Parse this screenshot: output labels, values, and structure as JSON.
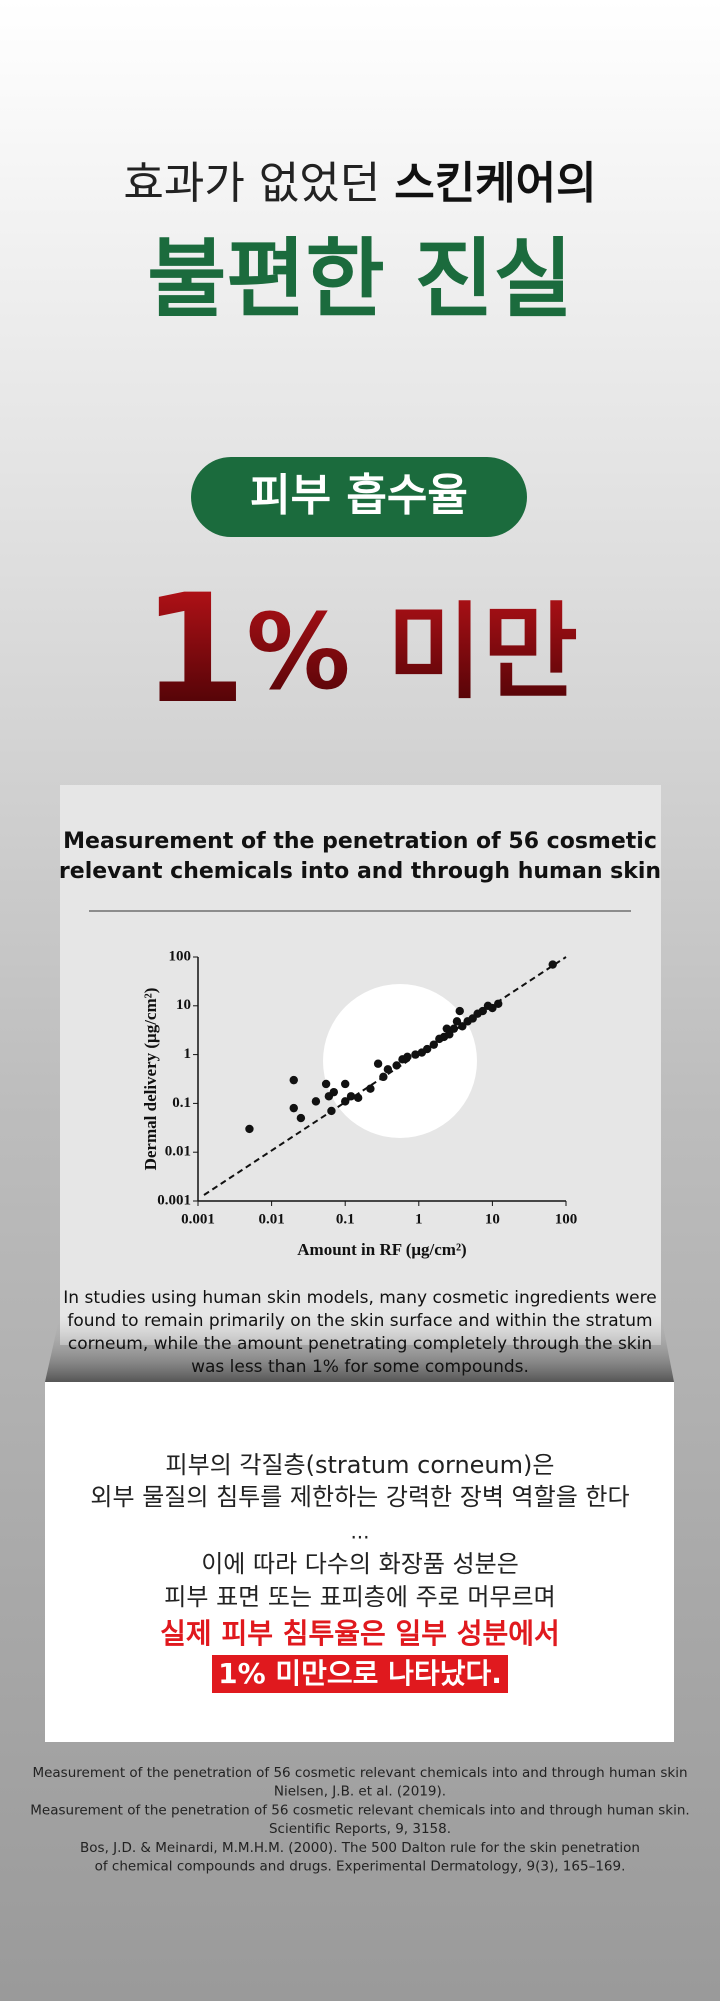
{
  "header": {
    "line1_normal": "효과가 없었던 ",
    "line1_bold": "스킨케어의",
    "line2": "불편한 진실"
  },
  "badge": "피부 흡수율",
  "big_stat": {
    "number": "1",
    "rest": "% 미만"
  },
  "card": {
    "title": [
      "Measurement of the penetration of 56 cosmetic",
      "relevant chemicals into and through human skin"
    ],
    "caption": [
      "In studies using human skin models, many cosmetic ingredients were",
      "found to remain primarily on the skin surface and within the stratum",
      "corneum, while the amount penetrating completely through the skin",
      "was less than 1% for some compounds."
    ]
  },
  "chart_data": {
    "type": "scatter",
    "x_label": "Amount in RF (μg/cm²)",
    "y_label": "Dermal delivery (μg/cm²)",
    "log_x": true,
    "log_y": true,
    "color": "#111111",
    "x": [
      0.005,
      0.02,
      0.02,
      0.025,
      0.04,
      0.055,
      0.06,
      0.07,
      0.065,
      0.1,
      0.1,
      0.12,
      0.15,
      0.22,
      0.28,
      0.33,
      0.38,
      0.5,
      0.6,
      0.7,
      0.9,
      1.1,
      1.3,
      1.6,
      1.9,
      2.2,
      2.4,
      2.6,
      3,
      3.3,
      3.6,
      3.9,
      4.6,
      5.4,
      6.3,
      7.4,
      8.7,
      10,
      12,
      66
    ],
    "y": [
      0.03,
      0.3,
      0.08,
      0.05,
      0.11,
      0.25,
      0.14,
      0.17,
      0.07,
      0.25,
      0.11,
      0.14,
      0.13,
      0.2,
      0.65,
      0.35,
      0.5,
      0.6,
      0.8,
      0.9,
      1,
      1.1,
      1.3,
      1.6,
      2.1,
      2.3,
      3.4,
      2.6,
      3.4,
      4.8,
      7.8,
      3.8,
      4.8,
      5.5,
      6.9,
      7.8,
      10,
      9,
      11,
      70
    ],
    "xlim": [
      0.001,
      100
    ],
    "ylim": [
      0.001,
      100
    ],
    "xticks": [
      0.001,
      0.01,
      0.1,
      1,
      10,
      100
    ],
    "yticks": [
      0.001,
      0.01,
      0.1,
      1,
      10,
      100
    ]
  },
  "summary": {
    "lines": [
      "피부의 각질층(stratum corneum)은",
      "외부 물질의 침투를 제한하는 강력한 장벽 역할을 한다",
      "...",
      "이에 따라 다수의 화장품 성분은",
      "피부 표면 또는 표피층에 주로 머무르며"
    ],
    "emphasis": "실제 피부 침투율은 일부 성분에서",
    "highlight": "1% 미만으로 나타났다."
  },
  "references": [
    "Measurement of the penetration of 56 cosmetic relevant chemicals into and through human skin",
    "Nielsen, J.B. et al. (2019).",
    "Measurement of the penetration of 56 cosmetic relevant chemicals into and through human skin.",
    "Scientific Reports, 9, 3158.",
    "Bos, J.D. & Meinardi, M.M.H.M. (2000). The 500 Dalton rule for the skin penetration",
    "of chemical compounds and drugs. Experimental Dermatology, 9(3), 165–169."
  ]
}
